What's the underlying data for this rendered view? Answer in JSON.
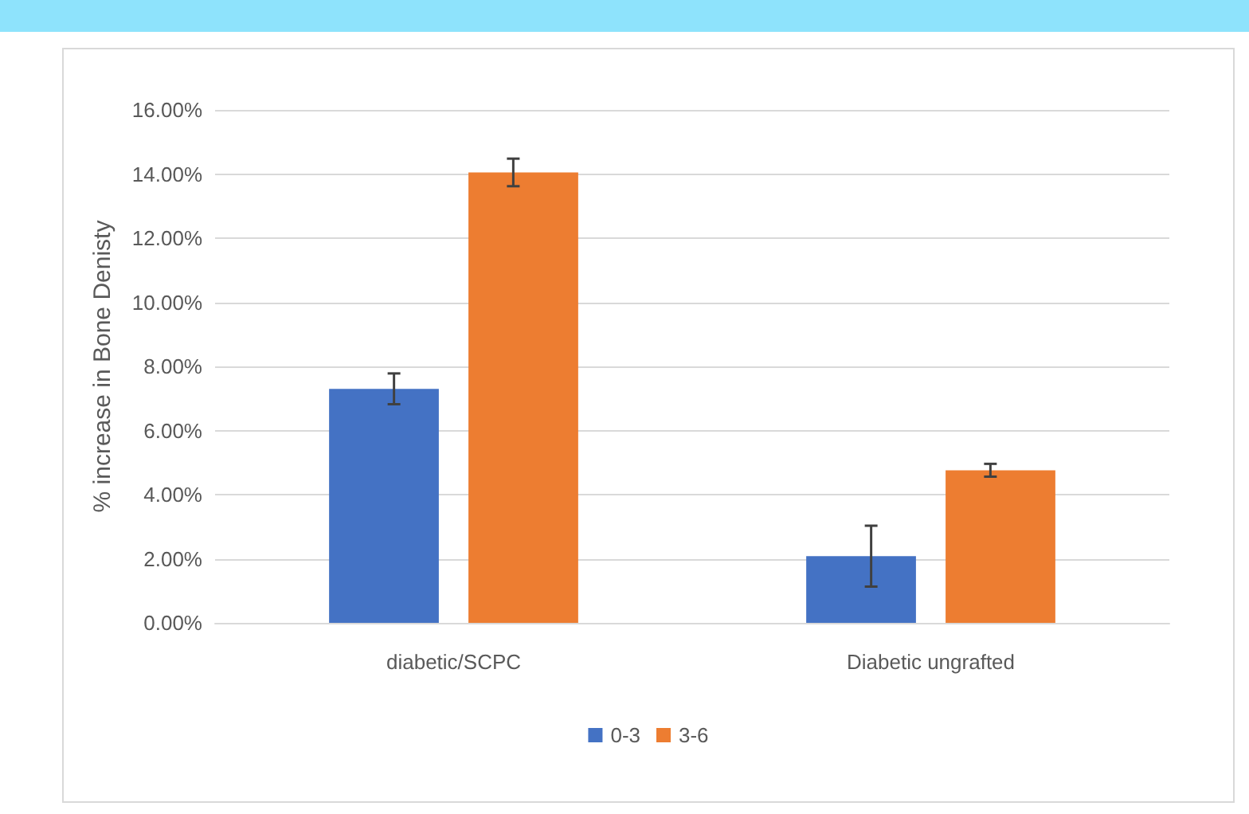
{
  "chart_data": {
    "type": "bar",
    "ylabel": "% increase in Bone Denisty",
    "categories": [
      "diabetic/SCPC",
      "Diabetic ungrafted"
    ],
    "series": [
      {
        "name": "0-3",
        "color": "#4472c4",
        "values": [
          7.3,
          2.08
        ],
        "errors": [
          0.48,
          0.95
        ]
      },
      {
        "name": "3-6",
        "color": "#ed7d31",
        "values": [
          14.05,
          4.76
        ],
        "errors": [
          0.43,
          0.2
        ]
      }
    ],
    "ylim": [
      0,
      16
    ],
    "yticks": [
      {
        "value": 0,
        "label": "0.00%"
      },
      {
        "value": 2,
        "label": "2.00%"
      },
      {
        "value": 4,
        "label": "4.00%"
      },
      {
        "value": 6,
        "label": "6.00%"
      },
      {
        "value": 8,
        "label": "8.00%"
      },
      {
        "value": 10,
        "label": "10.00%"
      },
      {
        "value": 12,
        "label": "12.00%"
      },
      {
        "value": 14,
        "label": "14.00%"
      },
      {
        "value": 16,
        "label": "16.00%"
      }
    ],
    "grid": "y",
    "legend": "bottom"
  }
}
